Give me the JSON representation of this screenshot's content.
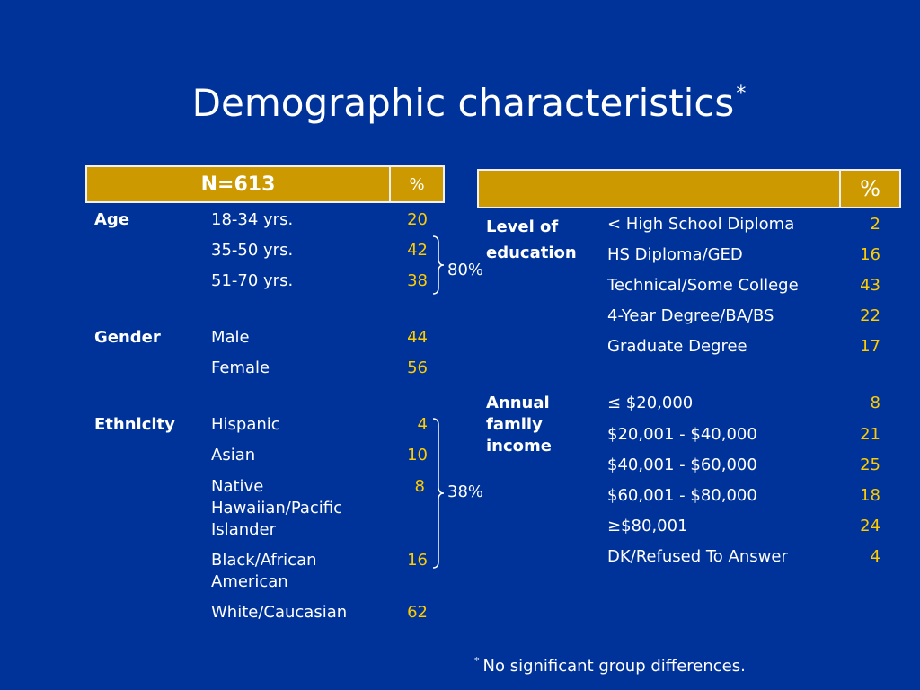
{
  "title": {
    "text": "Demographic characteristics",
    "marker": "*"
  },
  "left_table": {
    "header_n": "N=613",
    "header_pct": "%",
    "groups": [
      {
        "category": "Age",
        "rows": [
          {
            "label": "18-34 yrs.",
            "value": "20"
          },
          {
            "label": "35-50 yrs.",
            "value": "42"
          },
          {
            "label": "51-70 yrs.",
            "value": "38"
          }
        ]
      },
      {
        "category": "Gender",
        "rows": [
          {
            "label": "Male",
            "value": "44"
          },
          {
            "label": "Female",
            "value": "56"
          }
        ]
      },
      {
        "category": "Ethnicity",
        "rows": [
          {
            "label": "Hispanic",
            "value": "4"
          },
          {
            "label": "Asian",
            "value": "10"
          },
          {
            "label": "Native Hawaiian/Pacific Islander",
            "lines": [
              "Native",
              "Hawaiian/Pacific",
              "Islander"
            ],
            "value": "8"
          },
          {
            "label": "Black/African American",
            "lines": [
              "Black/African",
              "American"
            ],
            "value": "16"
          },
          {
            "label": "White/Caucasian",
            "value": "62"
          }
        ]
      }
    ],
    "bracket_age": "80%",
    "bracket_ethnicity": "38%"
  },
  "right_table": {
    "header_pct": "%",
    "groups": [
      {
        "category_lines": [
          "Level of",
          "education"
        ],
        "rows": [
          {
            "label": "< High School Diploma",
            "value": "2"
          },
          {
            "label": "HS Diploma/GED",
            "value": "16"
          },
          {
            "label": "Technical/Some College",
            "value": "43"
          },
          {
            "label": "4-Year Degree/BA/BS",
            "value": "22"
          },
          {
            "label": "Graduate Degree",
            "value": "17"
          }
        ]
      },
      {
        "category_lines": [
          "Annual",
          "family",
          "income"
        ],
        "rows": [
          {
            "label": "≤ $20,000",
            "value": "8"
          },
          {
            "label": "$20,001 - $40,000",
            "value": "21"
          },
          {
            "label": "$40,001 - $60,000",
            "value": "25"
          },
          {
            "label": "$60,001 - $80,000",
            "value": "18"
          },
          {
            "label": "≥$80,001",
            "value": "24"
          },
          {
            "label": "DK/Refused To Answer",
            "value": "4"
          }
        ]
      }
    ]
  },
  "footnote": {
    "marker": "*",
    "text": "No significant group differences."
  },
  "colors": {
    "background": "#003399",
    "header": "#cc9900",
    "value": "#ffcc00",
    "text": "#ffffff"
  }
}
